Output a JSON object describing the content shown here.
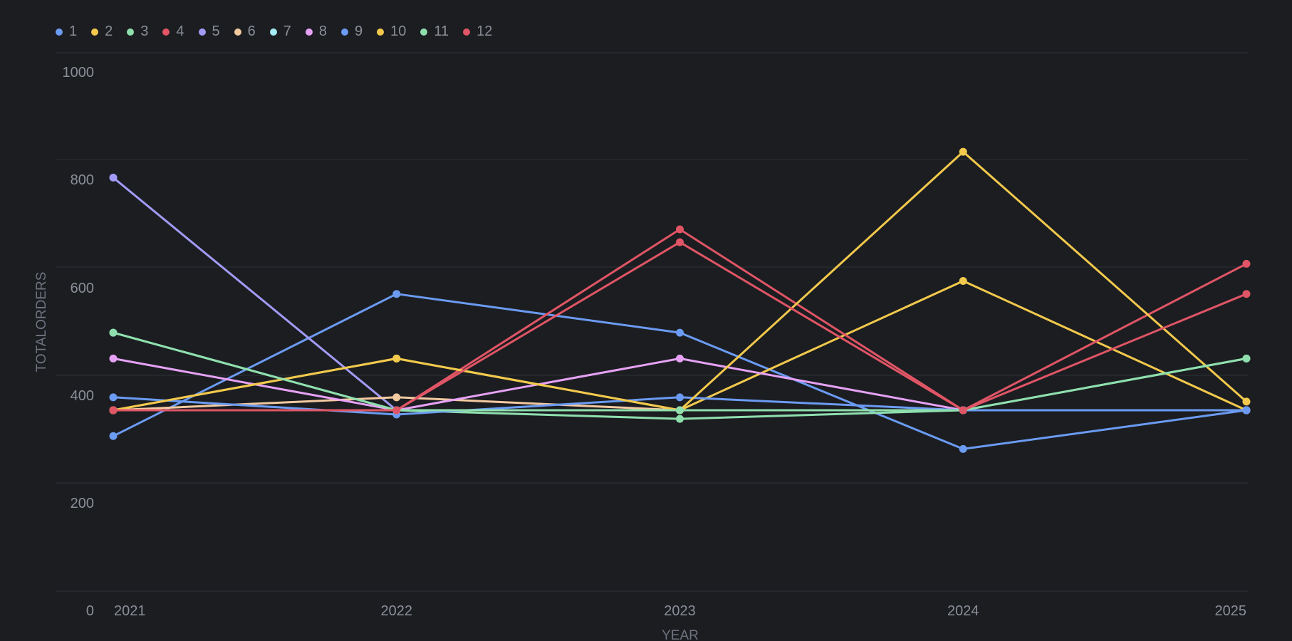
{
  "chart_data": {
    "type": "line",
    "xlabel": "YEAR",
    "ylabel": "TOTALORDERS",
    "ylim": [
      0,
      1000
    ],
    "y_ticks": [
      "0",
      "200",
      "400",
      "600",
      "800",
      "1000"
    ],
    "x": [
      "2021",
      "2022",
      "2023",
      "2024",
      "2025"
    ],
    "grid": true,
    "legend_position": "top-left",
    "series": [
      {
        "name": "1",
        "color": "#6b9bf2",
        "values": [
          288,
          552,
          480,
          264,
          336
        ]
      },
      {
        "name": "2",
        "color": "#f2c94c",
        "values": [
          336,
          432,
          336,
          576,
          336
        ]
      },
      {
        "name": "3",
        "color": "#8fdfae",
        "values": [
          480,
          336,
          320,
          336,
          432
        ]
      },
      {
        "name": "4",
        "color": "#e05565",
        "values": [
          336,
          336,
          672,
          336,
          608
        ]
      },
      {
        "name": "5",
        "color": "#a29bf5",
        "values": [
          768,
          336,
          336,
          336,
          336
        ]
      },
      {
        "name": "6",
        "color": "#f3c9a0",
        "values": [
          336,
          360,
          336,
          336,
          336
        ]
      },
      {
        "name": "7",
        "color": "#a6ecf5",
        "values": [
          336,
          336,
          336,
          336,
          336
        ]
      },
      {
        "name": "8",
        "color": "#e6a1f5",
        "values": [
          432,
          336,
          432,
          336,
          336
        ]
      },
      {
        "name": "9",
        "color": "#6b9bf2",
        "values": [
          360,
          328,
          360,
          336,
          336
        ]
      },
      {
        "name": "10",
        "color": "#f2c94c",
        "values": [
          336,
          432,
          336,
          816,
          352
        ]
      },
      {
        "name": "11",
        "color": "#8fdfae",
        "values": [
          480,
          336,
          336,
          336,
          432
        ]
      },
      {
        "name": "12",
        "color": "#e05565",
        "values": [
          336,
          336,
          648,
          336,
          552
        ]
      }
    ]
  }
}
